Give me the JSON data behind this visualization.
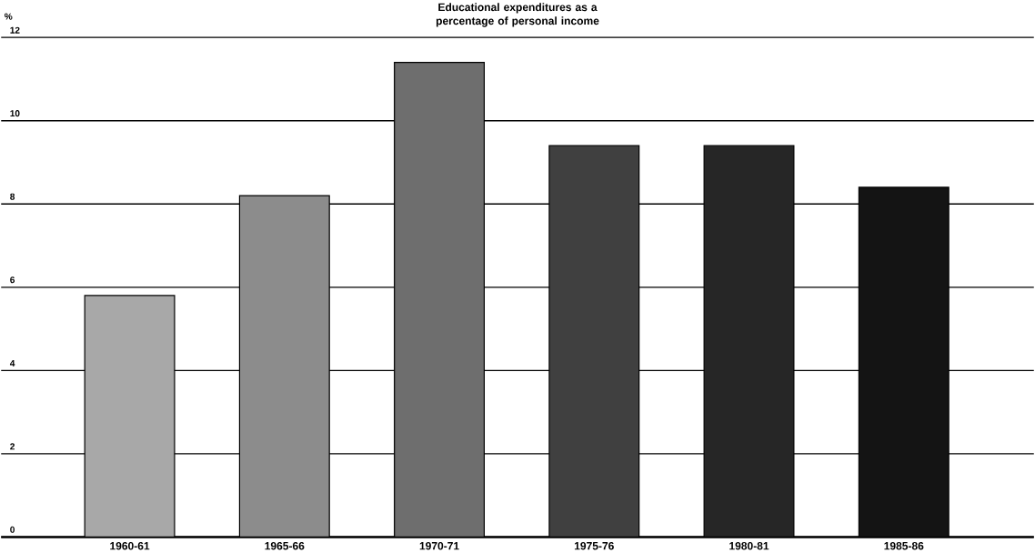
{
  "chart_data": {
    "type": "bar",
    "title": "Educational expenditures as a percentage of personal income",
    "ylabel": "%",
    "categories": [
      "1960-61",
      "1965-66",
      "1970-71",
      "1975-76",
      "1980-81",
      "1985-86"
    ],
    "values": [
      5.8,
      8.2,
      11.4,
      9.4,
      9.4,
      8.4
    ],
    "colors": [
      "#a8a8a8",
      "#8c8c8c",
      "#6e6e6e",
      "#404040",
      "#262626",
      "#141414"
    ],
    "ylim": [
      0,
      12
    ],
    "yticks": [
      0,
      2,
      4,
      6,
      8,
      10,
      12
    ],
    "grid": "y"
  }
}
